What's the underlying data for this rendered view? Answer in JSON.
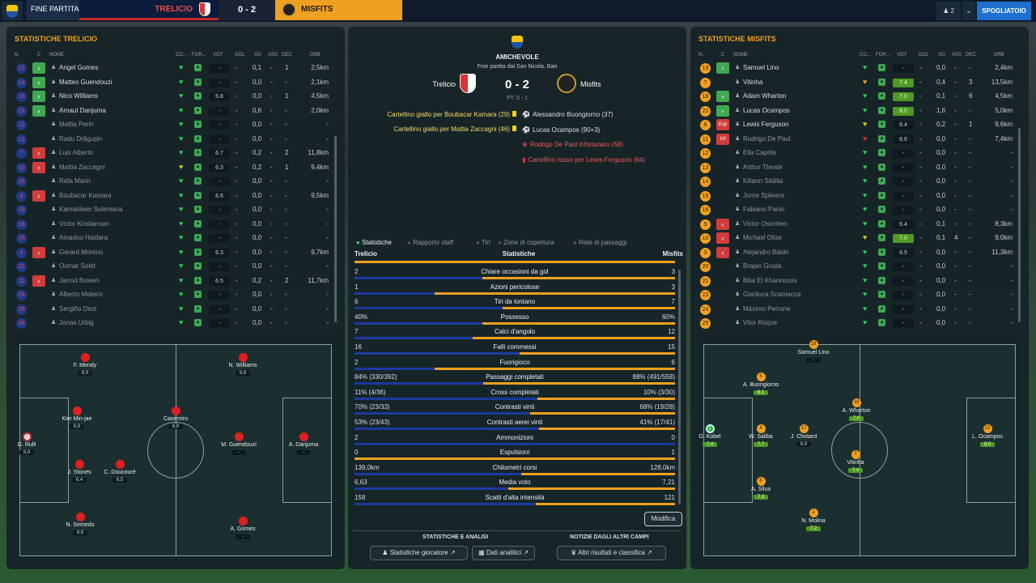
{
  "topbar": {
    "status": "FINE PARTITA",
    "home": "TRELICIO",
    "score": "0 - 2",
    "away": "MISFITS",
    "users": "♟ 2",
    "dressing": "SPOGLIATOIO"
  },
  "left": {
    "title": "STATISTICHE TRELICIO",
    "headers": {
      "n": "N.",
      "c": "C",
      "name": "NOME",
      "co": "CO...",
      "for": "FOR...",
      "vot": "VOT",
      "gol": "GOL",
      "xg": "XG",
      "ass": "ASS",
      "dec": "DEC",
      "drb": "DRB"
    },
    "players": [
      {
        "n": "23",
        "sub": "in",
        "name": "Angel Gomes",
        "vot": "-",
        "xg": "0,1",
        "ass": "-",
        "dec": "1",
        "drb": "2,5km",
        "dim": false
      },
      {
        "n": "14",
        "sub": "in",
        "name": "Matteo Guendouzi",
        "vot": "-",
        "xg": "0,0",
        "ass": "-",
        "dec": "-",
        "drb": "2,1km",
        "dim": false
      },
      {
        "n": "15",
        "sub": "in",
        "name": "Nico Williams",
        "vot": "6.8",
        "xg": "0,0",
        "ass": "-",
        "dec": "1",
        "drb": "4,5km",
        "dim": false
      },
      {
        "n": "21",
        "sub": "in",
        "name": "Arnaut Danjuma",
        "vot": "-",
        "xg": "0,6",
        "ass": "-",
        "dec": "-",
        "drb": "2,0km",
        "dim": false
      },
      {
        "n": "12",
        "sub": "",
        "name": "Mattia Perin",
        "vot": "-",
        "xg": "0,0",
        "ass": "-",
        "dec": "-",
        "drb": "-",
        "dim": true
      },
      {
        "n": "13",
        "sub": "",
        "name": "Radu Drăgușin",
        "vot": "-",
        "xg": "0,0",
        "ass": "-",
        "dec": "-",
        "drb": "-",
        "dim": true
      },
      {
        "n": "7",
        "sub": "out",
        "name": "Luis Alberto",
        "vot": "6.7",
        "xg": "0,2",
        "ass": "-",
        "dec": "2",
        "drb": "11,8km",
        "dim": true
      },
      {
        "n": "10",
        "sub": "out",
        "name": "Mattia Zaccagni",
        "vot": "6.3",
        "xg": "0,2",
        "ass": "-",
        "dec": "1",
        "drb": "9,4km",
        "dim": true
      },
      {
        "n": "16",
        "sub": "",
        "name": "Rafa Marin",
        "vot": "-",
        "xg": "0,0",
        "ass": "-",
        "dec": "-",
        "drb": "-",
        "dim": true
      },
      {
        "n": "6",
        "sub": "out",
        "name": "Boubacar Kamara",
        "vot": "6.6",
        "xg": "0,0",
        "ass": "-",
        "dec": "-",
        "drb": "9,5km",
        "dim": true
      },
      {
        "n": "18",
        "sub": "",
        "name": "Kamaldeen Sulemana",
        "vot": "-",
        "xg": "0,0",
        "ass": "-",
        "dec": "-",
        "drb": "-",
        "dim": true
      },
      {
        "n": "19",
        "sub": "",
        "name": "Victor Kristiansen",
        "vot": "-",
        "xg": "0,0",
        "ass": "-",
        "dec": "-",
        "drb": "-",
        "dim": true
      },
      {
        "n": "20",
        "sub": "",
        "name": "Amadou Haidara",
        "vot": "-",
        "xg": "0,0",
        "ass": "-",
        "dec": "-",
        "drb": "-",
        "dim": true
      },
      {
        "n": "9",
        "sub": "out",
        "name": "Gerard Moreno",
        "vot": "6.3",
        "xg": "0,0",
        "ass": "-",
        "dec": "-",
        "drb": "9,7km",
        "dim": true
      },
      {
        "n": "22",
        "sub": "",
        "name": "Oumar Solet",
        "vot": "-",
        "xg": "0,0",
        "ass": "-",
        "dec": "-",
        "drb": "-",
        "dim": true
      },
      {
        "n": "11",
        "sub": "out",
        "name": "Jarrod Bowen",
        "vot": "6.5",
        "xg": "0,2",
        "ass": "-",
        "dec": "2",
        "drb": "11,7km",
        "dim": true
      },
      {
        "n": "24",
        "sub": "",
        "name": "Alberto Moleiro",
        "vot": "-",
        "xg": "0,0",
        "ass": "-",
        "dec": "-",
        "drb": "-",
        "dim": true
      },
      {
        "n": "25",
        "sub": "",
        "name": "Sergiño Dest",
        "vot": "-",
        "xg": "0,0",
        "ass": "-",
        "dec": "-",
        "drb": "-",
        "dim": true
      },
      {
        "n": "26",
        "sub": "",
        "name": "Jonas Urbig",
        "vot": "-",
        "xg": "0,0",
        "ass": "-",
        "dec": "-",
        "drb": "-",
        "dim": true
      }
    ],
    "formation": [
      {
        "name": "F. Mendy",
        "rt": "6,9"
      },
      {
        "name": "N. Williams",
        "rt": "6,8"
      },
      {
        "name": "Kim Min-jae",
        "rt": "6,8"
      },
      {
        "name": "Casemiro",
        "rt": "6,8"
      },
      {
        "name": "G. Rulli",
        "rt": "6,8",
        "num": "1"
      },
      {
        "name": "M. Guendouzi",
        "rt": "-"
      },
      {
        "name": "A. Danjuma",
        "rt": "-"
      },
      {
        "name": "J. Stones",
        "rt": "6,4"
      },
      {
        "name": "C. Doucouré",
        "rt": "6,5"
      },
      {
        "name": "N. Semedo",
        "rt": "6,8"
      },
      {
        "name": "A. Gomes",
        "rt": "-"
      }
    ]
  },
  "right": {
    "title": "STATISTICHE MISFITS",
    "players": [
      {
        "n": "19",
        "sub": "in",
        "name": "Samuel Lino",
        "vot": "-",
        "xg": "0,0",
        "ass": "-",
        "dec": "-",
        "drb": "2,4km",
        "gv": false,
        "dim": false
      },
      {
        "n": "7",
        "sub": "",
        "name": "Vitinha",
        "vot": "7.4",
        "xg": "0,4",
        "ass": "-",
        "dec": "3",
        "drb": "13,5km",
        "gv": true,
        "dim": false
      },
      {
        "n": "18",
        "sub": "in",
        "name": "Adam Wharton",
        "vot": "7.0",
        "xg": "0,1",
        "ass": "-",
        "dec": "6",
        "drb": "4,5km",
        "gv": true,
        "dim": false
      },
      {
        "n": "22",
        "sub": "in",
        "name": "Lucas Ocampos",
        "vot": "8.0",
        "xg": "1,6",
        "ass": "-",
        "dec": "-",
        "drb": "5,0km",
        "gv": true,
        "dim": false
      },
      {
        "n": "8",
        "sub": "esp",
        "esp": "Esp",
        "name": "Lewis Ferguson",
        "vot": "6.4",
        "xg": "0,2",
        "ass": "-",
        "dec": "1",
        "drb": "9,6km",
        "gv": false,
        "dim": false
      },
      {
        "n": "11",
        "sub": "esp",
        "esp": "Inf",
        "name": "Rodrigo De Paul",
        "vot": "6.6",
        "xg": "0,0",
        "ass": "-",
        "dec": "-",
        "drb": "7,4km",
        "gv": false,
        "dim": true
      },
      {
        "n": "12",
        "sub": "",
        "name": "Ella Caprile",
        "vot": "-",
        "xg": "0,0",
        "ass": "-",
        "dec": "-",
        "drb": "-",
        "gv": false,
        "dim": true
      },
      {
        "n": "13",
        "sub": "",
        "name": "Arthur Theate",
        "vot": "-",
        "xg": "0,0",
        "ass": "-",
        "dec": "-",
        "drb": "-",
        "gv": false,
        "dim": true
      },
      {
        "n": "14",
        "sub": "",
        "name": "Kiliann Sildilia",
        "vot": "-",
        "xg": "0,0",
        "ass": "-",
        "dec": "-",
        "drb": "-",
        "gv": false,
        "dim": true
      },
      {
        "n": "15",
        "sub": "",
        "name": "Jorne Spileers",
        "vot": "-",
        "xg": "0,0",
        "ass": "-",
        "dec": "-",
        "drb": "-",
        "gv": false,
        "dim": true
      },
      {
        "n": "16",
        "sub": "",
        "name": "Fabiano Parisi",
        "vot": "-",
        "xg": "0,0",
        "ass": "-",
        "dec": "-",
        "drb": "-",
        "gv": false,
        "dim": true
      },
      {
        "n": "9",
        "sub": "out",
        "name": "Victor Osimhen",
        "vot": "6.4",
        "xg": "0,1",
        "ass": "-",
        "dec": "-",
        "drb": "8,3km",
        "gv": false,
        "dim": true
      },
      {
        "n": "10",
        "sub": "out",
        "name": "Michael Olise",
        "vot": "7.0",
        "xg": "0,1",
        "ass": "4",
        "dec": "-",
        "drb": "9,0km",
        "gv": true,
        "dim": true
      },
      {
        "n": "3",
        "sub": "out",
        "name": "Alejandro Balde",
        "vot": "6.5",
        "xg": "0,0",
        "ass": "-",
        "dec": "-",
        "drb": "11,3km",
        "gv": false,
        "dim": true
      },
      {
        "n": "20",
        "sub": "",
        "name": "Brajan Gruda",
        "vot": "-",
        "xg": "0,0",
        "ass": "-",
        "dec": "-",
        "drb": "-",
        "gv": false,
        "dim": true
      },
      {
        "n": "21",
        "sub": "",
        "name": "Bilal El Khannouss",
        "vot": "-",
        "xg": "0,0",
        "ass": "-",
        "dec": "-",
        "drb": "-",
        "gv": false,
        "dim": true
      },
      {
        "n": "23",
        "sub": "",
        "name": "Gianluca Scamacca",
        "vot": "-",
        "xg": "0,0",
        "ass": "-",
        "dec": "-",
        "drb": "-",
        "gv": false,
        "dim": true
      },
      {
        "n": "24",
        "sub": "",
        "name": "Máximo Perrone",
        "vot": "-",
        "xg": "0,0",
        "ass": "-",
        "dec": "-",
        "drb": "-",
        "gv": false,
        "dim": true
      },
      {
        "n": "25",
        "sub": "",
        "name": "Vitor Roque",
        "vot": "-",
        "xg": "0,0",
        "ass": "-",
        "dec": "-",
        "drb": "-",
        "gv": false,
        "dim": true
      }
    ],
    "formation": [
      {
        "name": "Samuel Lino",
        "rt": "-",
        "num": "19"
      },
      {
        "name": "A. Buongiorno",
        "rt": "6.1",
        "num": "5"
      },
      {
        "name": "A. Wharton",
        "rt": "7.0",
        "num": "18"
      },
      {
        "name": "G. Kobel",
        "rt": "7.4",
        "num": "1"
      },
      {
        "name": "W. Saliba",
        "rt": "7.7",
        "num": "4"
      },
      {
        "name": "J. Chotard",
        "rt": "6,9",
        "num": "17"
      },
      {
        "name": "L. Ocampos",
        "rt": "8.0",
        "num": "22"
      },
      {
        "name": "Vitinha",
        "rt": "7.4",
        "num": "7"
      },
      {
        "name": "A. Silva",
        "rt": "7.3",
        "num": "6"
      },
      {
        "name": "N. Molina",
        "rt": "7.2",
        "num": "2"
      }
    ]
  },
  "center": {
    "comp": "AMICHEVOLE",
    "venue": "Fine partita dal San Nicola, Bari",
    "home": "Trelicio",
    "away": "Misfits",
    "score": "0 - 2",
    "ht": "PT: 0 - 1",
    "events_home": [
      "Cartellino giallo per Boubacar Kamara (29)",
      "Cartellino giallo per Mattia Zaccagni (46)"
    ],
    "events_away": [
      "Alessandro Buongiorno (37)",
      "Lucas Ocampos (90+3)",
      "Rodrigo De Paul infortunato (58)",
      "Cartellino rosso per Lewis Ferguson (64)"
    ],
    "tabs": [
      "Statistiche",
      "Rapporto staff",
      "Tiri",
      "Zone di copertura",
      "Rete di passaggi"
    ],
    "stats_head": {
      "home": "Trelicio",
      "mid": "Statistiche",
      "away": "Misfits"
    },
    "stats": [
      {
        "label": "Chiare occasioni da gol",
        "h": "2",
        "a": "3",
        "hv": 2,
        "av": 3
      },
      {
        "label": "Azioni pericolose",
        "h": "1",
        "a": "3",
        "hv": 1,
        "av": 3
      },
      {
        "label": "Tiri da lontano",
        "h": "6",
        "a": "7",
        "hv": 6,
        "av": 7
      },
      {
        "label": "Possesso",
        "h": "40%",
        "a": "60%",
        "hv": 40,
        "av": 60
      },
      {
        "label": "Calci d'angolo",
        "h": "7",
        "a": "12",
        "hv": 7,
        "av": 12
      },
      {
        "label": "Falli commessi",
        "h": "16",
        "a": "15",
        "hv": 16,
        "av": 15
      },
      {
        "label": "Fuorigioco",
        "h": "2",
        "a": "6",
        "hv": 2,
        "av": 6
      },
      {
        "label": "Passaggi completati",
        "h": "84% (330/392)",
        "a": "88% (491/558)",
        "hv": 330,
        "av": 491
      },
      {
        "label": "Cross completati",
        "h": "11% (4/36)",
        "a": "10% (3/30)",
        "hv": 4,
        "av": 3
      },
      {
        "label": "Contrasti vinti",
        "h": "70% (23/33)",
        "a": "68% (19/28)",
        "hv": 23,
        "av": 19
      },
      {
        "label": "Contrasti aerei vinti",
        "h": "53% (23/43)",
        "a": "41% (17/41)",
        "hv": 23,
        "av": 17
      },
      {
        "label": "Ammonizioni",
        "h": "2",
        "a": "0",
        "hv": 2,
        "av": 0
      },
      {
        "label": "Espulsioni",
        "h": "0",
        "a": "1",
        "hv": 0,
        "av": 1
      },
      {
        "label": "Chilometri corsi",
        "h": "139,0km",
        "a": "128,0km",
        "hv": 139,
        "av": 128
      },
      {
        "label": "Media voto",
        "h": "6,63",
        "a": "7,21",
        "hv": 6.63,
        "av": 7.21
      },
      {
        "label": "Scatti d'alta intensità",
        "h": "158",
        "a": "121",
        "hv": 158,
        "av": 121
      }
    ],
    "modify": "Modifica",
    "sec1": "STATISTICHE E ANALISI",
    "sec2": "NOTIZIE DAGLI ALTRI CAMPI",
    "btn1": "Statistiche giocatore",
    "btn2": "Dati analitici",
    "btn3": "Altri risultati e classifica"
  }
}
